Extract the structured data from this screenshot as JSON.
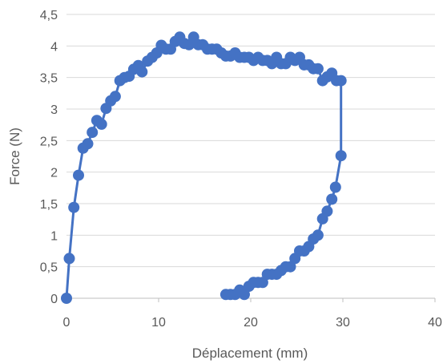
{
  "chart_data": {
    "type": "scatter",
    "title": "",
    "xlabel": "Déplacement (mm)",
    "ylabel": "Force (N)",
    "xlim": [
      0,
      40
    ],
    "ylim": [
      0,
      4.5
    ],
    "x_ticks": [
      "0",
      "10",
      "20",
      "30",
      "40"
    ],
    "y_ticks": [
      "0",
      "0,5",
      "1",
      "1,5",
      "2",
      "2,5",
      "3",
      "3,5",
      "4",
      "4,5"
    ],
    "grid": "horizontal",
    "legend": "none",
    "colors": {
      "series": "#4472c4",
      "grid": "#d9d9d9",
      "text": "#595959"
    },
    "series": [
      {
        "style": "line-with-markers",
        "points": [
          [
            0.0,
            0.0
          ],
          [
            0.3,
            0.63
          ],
          [
            0.8,
            1.44
          ],
          [
            1.3,
            1.95
          ],
          [
            1.8,
            2.38
          ],
          [
            2.3,
            2.45
          ],
          [
            2.8,
            2.63
          ],
          [
            3.3,
            2.82
          ],
          [
            3.8,
            2.76
          ],
          [
            4.3,
            3.01
          ],
          [
            4.8,
            3.13
          ],
          [
            5.3,
            3.2
          ],
          [
            5.8,
            3.45
          ],
          [
            6.3,
            3.5
          ],
          [
            6.8,
            3.52
          ],
          [
            7.3,
            3.63
          ],
          [
            7.8,
            3.69
          ],
          [
            8.2,
            3.59
          ],
          [
            8.8,
            3.76
          ],
          [
            9.3,
            3.82
          ],
          [
            9.8,
            3.89
          ],
          [
            10.3,
            4.01
          ],
          [
            10.8,
            3.95
          ],
          [
            11.3,
            3.95
          ],
          [
            11.8,
            4.07
          ],
          [
            12.3,
            4.14
          ],
          [
            12.8,
            4.04
          ],
          [
            13.3,
            4.02
          ],
          [
            13.8,
            4.14
          ],
          [
            14.3,
            4.02
          ],
          [
            14.8,
            4.02
          ],
          [
            15.3,
            3.95
          ],
          [
            15.8,
            3.95
          ],
          [
            16.3,
            3.95
          ],
          [
            16.8,
            3.89
          ],
          [
            17.3,
            3.84
          ],
          [
            17.8,
            3.84
          ],
          [
            18.3,
            3.89
          ],
          [
            18.8,
            3.82
          ],
          [
            19.3,
            3.82
          ],
          [
            19.8,
            3.82
          ],
          [
            20.3,
            3.77
          ],
          [
            20.8,
            3.82
          ],
          [
            21.3,
            3.77
          ],
          [
            21.8,
            3.77
          ],
          [
            22.3,
            3.72
          ],
          [
            22.8,
            3.82
          ],
          [
            23.3,
            3.72
          ],
          [
            23.8,
            3.72
          ],
          [
            24.3,
            3.82
          ],
          [
            24.8,
            3.77
          ],
          [
            25.3,
            3.82
          ],
          [
            25.8,
            3.7
          ],
          [
            26.3,
            3.7
          ],
          [
            26.8,
            3.64
          ],
          [
            27.3,
            3.64
          ],
          [
            27.8,
            3.45
          ],
          [
            28.3,
            3.51
          ],
          [
            28.8,
            3.57
          ],
          [
            29.3,
            3.45
          ],
          [
            29.8,
            3.45
          ],
          [
            29.8,
            2.26
          ],
          [
            29.2,
            1.76
          ],
          [
            28.8,
            1.57
          ],
          [
            28.3,
            1.38
          ],
          [
            27.8,
            1.26
          ],
          [
            27.3,
            1.0
          ],
          [
            26.8,
            0.94
          ],
          [
            26.3,
            0.82
          ],
          [
            25.8,
            0.75
          ],
          [
            25.3,
            0.75
          ],
          [
            24.8,
            0.63
          ],
          [
            24.3,
            0.5
          ],
          [
            23.8,
            0.5
          ],
          [
            23.3,
            0.44
          ],
          [
            22.8,
            0.38
          ],
          [
            22.3,
            0.38
          ],
          [
            21.8,
            0.38
          ],
          [
            21.3,
            0.25
          ],
          [
            20.8,
            0.25
          ],
          [
            20.3,
            0.25
          ],
          [
            19.8,
            0.19
          ],
          [
            19.3,
            0.06
          ],
          [
            18.8,
            0.13
          ],
          [
            18.3,
            0.06
          ],
          [
            17.8,
            0.06
          ],
          [
            17.3,
            0.06
          ]
        ]
      }
    ]
  }
}
